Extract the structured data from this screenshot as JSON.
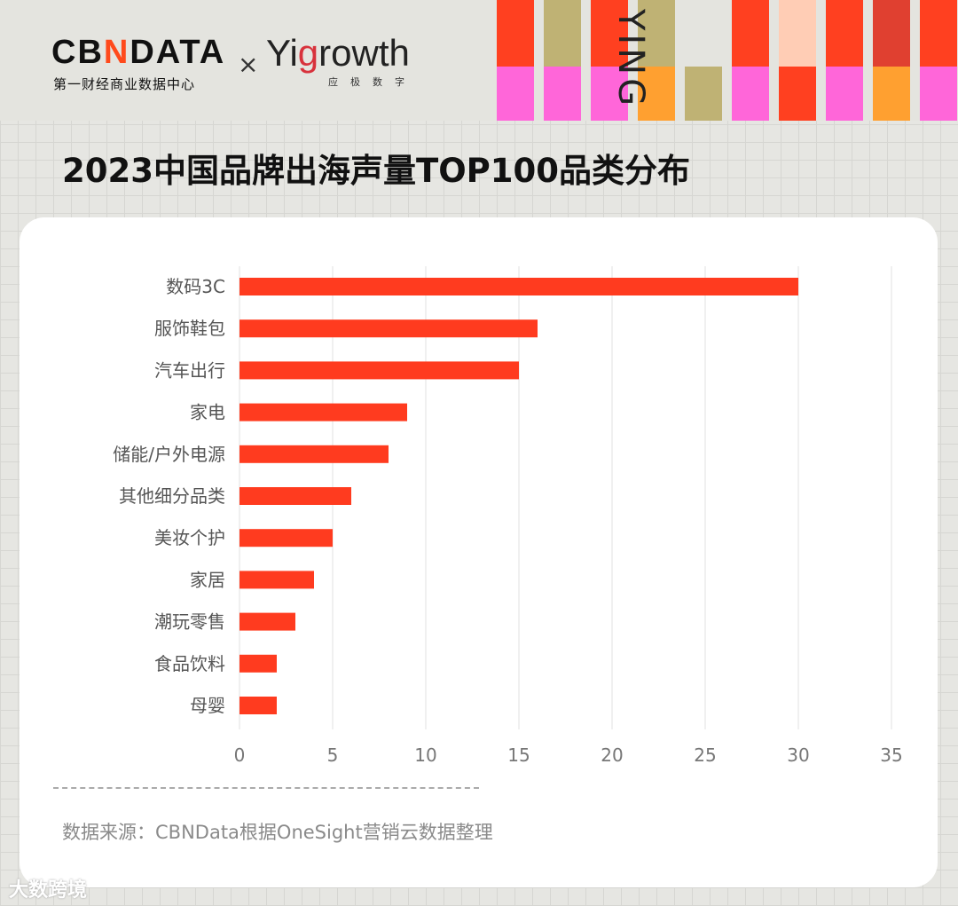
{
  "header": {
    "logo_cbndata": "CBNDATA",
    "logo_cbndata_sub": "第一财经商业数据中心",
    "times": "×",
    "logo_yigrowth": "Yigrowth",
    "logo_yigrowth_sub": "应极数字",
    "decor_text": "YING"
  },
  "colors": {
    "bar": "#ff3b1f",
    "grid": "#e2e2e2",
    "title": "#111111"
  },
  "chart_data": {
    "type": "bar",
    "orientation": "horizontal",
    "title": "2023中国品牌出海声量TOP100品类分布",
    "categories": [
      "数码3C",
      "服饰鞋包",
      "汽车出行",
      "家电",
      "储能/户外电源",
      "其他细分品类",
      "美妆个护",
      "家居",
      "潮玩零售",
      "食品饮料",
      "母婴"
    ],
    "values": [
      30,
      16,
      15,
      9,
      8,
      6,
      5,
      4,
      3,
      2,
      2
    ],
    "xlim": [
      0,
      35
    ],
    "xticks": [
      "0",
      "5",
      "10",
      "15",
      "20",
      "25",
      "30",
      "35"
    ],
    "grid": true,
    "xlabel": "",
    "ylabel": ""
  },
  "footer": {
    "source": "数据来源：CBNData根据OneSight营销云数据整理",
    "watermark": "大数跨境"
  }
}
